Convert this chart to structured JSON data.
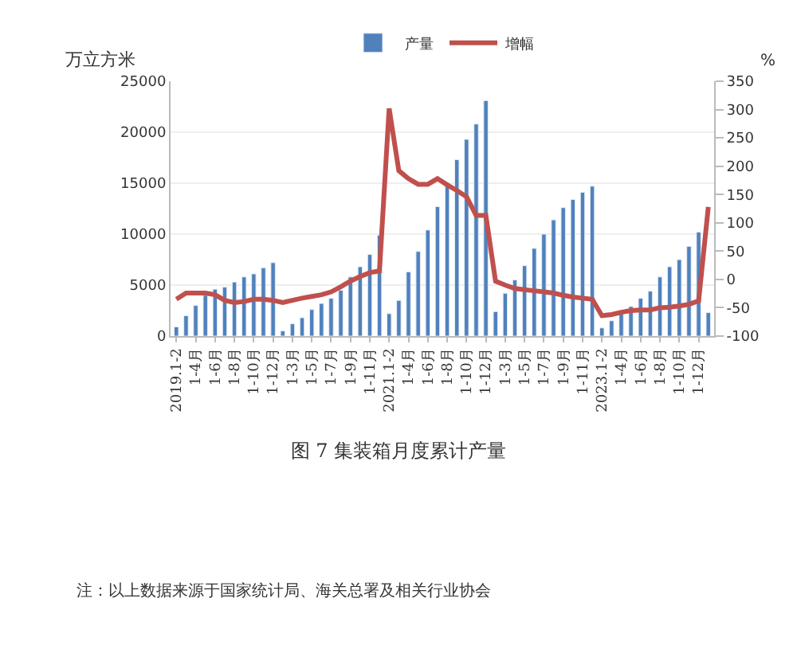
{
  "chart_data": {
    "type": "bar",
    "title": "图 7 集装箱月度累计产量",
    "ylabel": "万立方米",
    "y2label": "%",
    "categories": [
      "2019.1-2",
      null,
      "1-4月",
      null,
      "1-6月",
      null,
      "1-8月",
      null,
      "1-10月",
      null,
      "1-12月",
      null,
      "1-3月",
      null,
      "1-5月",
      null,
      "1-7月",
      null,
      "1-9月",
      null,
      "1-11月",
      null,
      "2021.1-2",
      null,
      "1-4月",
      null,
      "1-6月",
      null,
      "1-8月",
      null,
      "1-10月",
      null,
      "1-12月",
      null,
      "1-3月",
      null,
      "1-5月",
      null,
      "1-7月",
      null,
      "1-9月",
      null,
      "1-11月",
      null,
      "2023.1-2",
      null,
      "1-4月",
      null,
      "1-6月",
      null,
      "1-8月",
      null,
      "1-10月",
      null,
      "1-12月",
      null
    ],
    "series": [
      {
        "name": "产量",
        "color": "#4f81bd",
        "values": [
          900,
          2000,
          3000,
          4000,
          4600,
          4800,
          5300,
          5800,
          6100,
          6700,
          7200,
          500,
          1200,
          1800,
          2600,
          3200,
          3700,
          4500,
          5800,
          6800,
          8000,
          9900,
          2200,
          3500,
          6300,
          8300,
          10400,
          12700,
          14800,
          17300,
          19300,
          20800,
          23100,
          2400,
          4200,
          5500,
          6900,
          8600,
          10000,
          11400,
          12600,
          13400,
          14100,
          14700,
          800,
          1500,
          2200,
          2900,
          3700,
          4400,
          5800,
          6800,
          7500,
          8800,
          10200,
          2300
        ]
      },
      {
        "name": "增幅",
        "type": "line",
        "axis": "y2",
        "color": "#c0504d",
        "values": [
          -35,
          -24,
          -24,
          -24,
          -27,
          -37,
          -41,
          -39,
          -35,
          -35,
          -37,
          -41,
          -37,
          -33,
          -30,
          -27,
          -22,
          -13,
          -3,
          5,
          12,
          15,
          302,
          192,
          178,
          168,
          168,
          178,
          167,
          157,
          146,
          113,
          113,
          -3,
          -10,
          -16,
          -18,
          -20,
          -22,
          -24,
          -28,
          -31,
          -33,
          -35,
          -64,
          -62,
          -58,
          -55,
          -54,
          -54,
          -50,
          -49,
          -47,
          -44,
          -38,
          128
        ]
      }
    ],
    "ylim": [
      0,
      25000
    ],
    "yticks": [
      0,
      5000,
      10000,
      15000,
      20000,
      25000
    ],
    "y2lim": [
      -100,
      350
    ],
    "y2ticks": [
      -100,
      -50,
      0,
      50,
      100,
      150,
      200,
      250,
      300,
      350
    ],
    "grid": "y",
    "legend": "top",
    "marker": "none",
    "line_style": "solid",
    "annotations": [
      "注：以上数据来源于国家统计局、海关总署及相关行业协会"
    ]
  }
}
